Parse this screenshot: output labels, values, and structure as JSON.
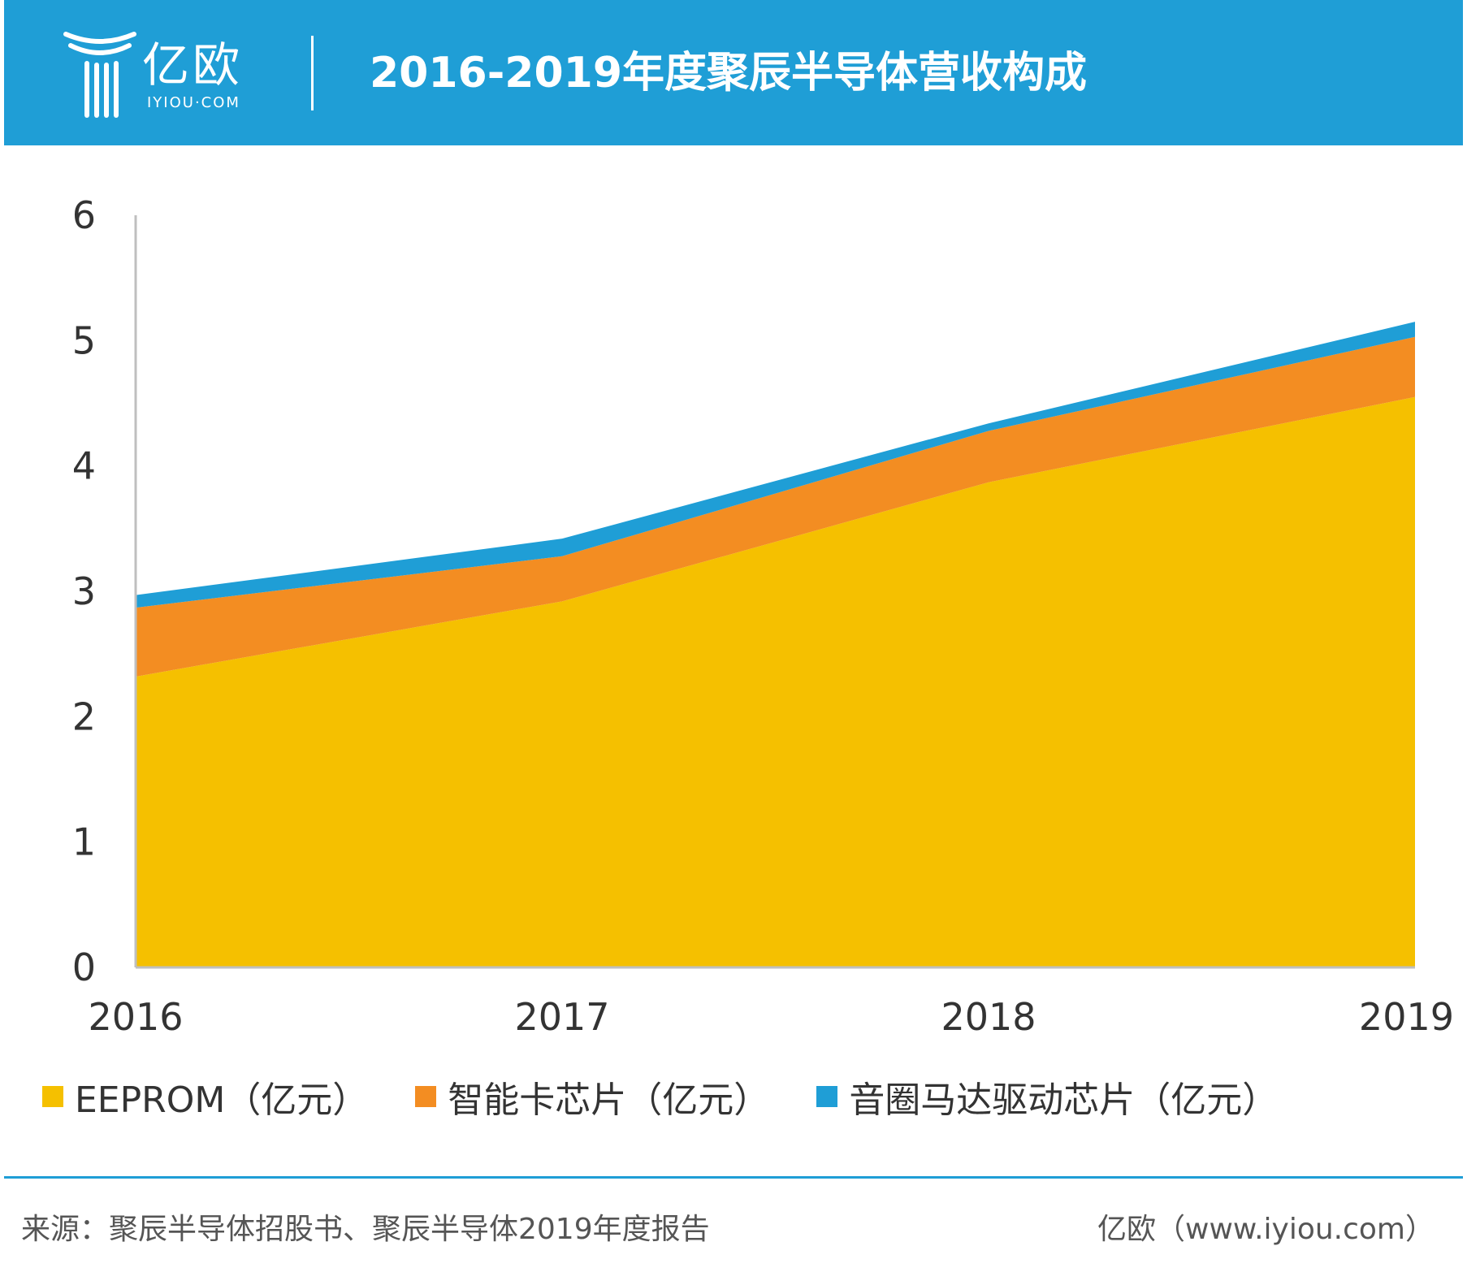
{
  "header": {
    "logo_text": "亿欧",
    "logo_sub": "IYIOU·COM",
    "title": "2016-2019年度聚辰半导体营收构成"
  },
  "colors": {
    "header_bg": "#1f9ed6",
    "eeprom": "#f5c000",
    "smart_card": "#f38d22",
    "voice_coil": "#1f9ed6"
  },
  "chart_data": {
    "type": "area",
    "stacked": true,
    "x": [
      "2016",
      "2017",
      "2018",
      "2019"
    ],
    "ylim": [
      0,
      6
    ],
    "yticks": [
      "0",
      "1",
      "2",
      "3",
      "4",
      "5",
      "6"
    ],
    "grid": false,
    "legend_position": "bottom",
    "series": [
      {
        "name": "EEPROM（亿元）",
        "values": [
          2.32,
          2.92,
          3.87,
          4.55
        ],
        "color": "#f5c000"
      },
      {
        "name": "智能卡芯片（亿元）",
        "values": [
          0.55,
          0.36,
          0.41,
          0.48
        ],
        "color": "#f38d22"
      },
      {
        "name": "音圈马达驱动芯片（亿元）",
        "values": [
          0.1,
          0.14,
          0.06,
          0.12
        ],
        "color": "#1f9ed6"
      }
    ]
  },
  "footer": {
    "source": "来源：聚辰半导体招股书、聚辰半导体2019年度报告",
    "site": "亿欧（www.iyiou.com）"
  }
}
